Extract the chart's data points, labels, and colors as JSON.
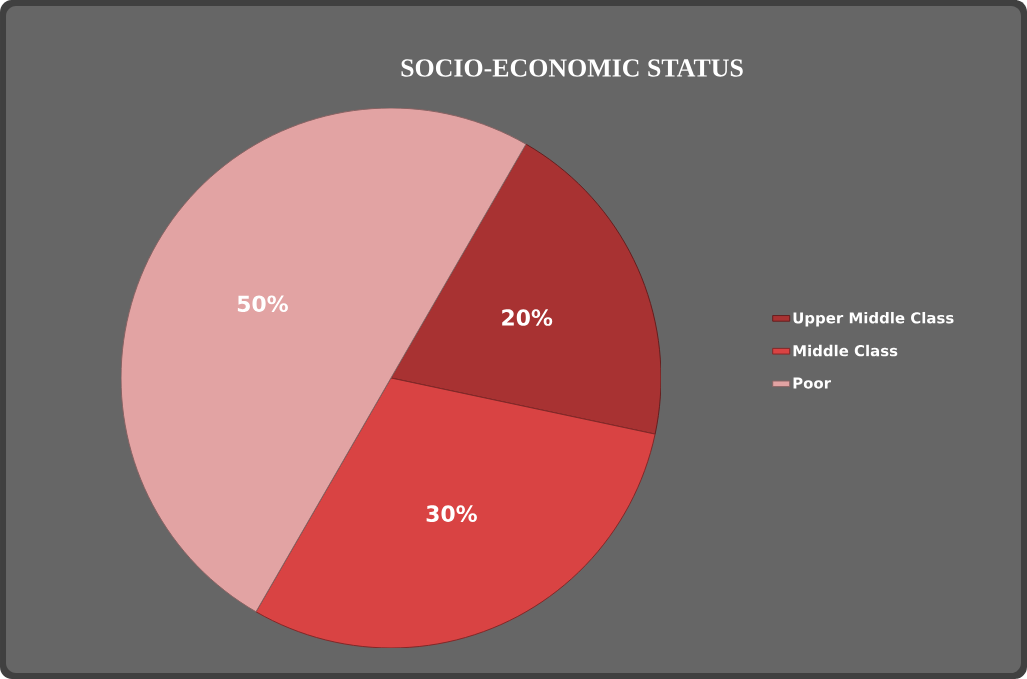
{
  "chart_data": {
    "type": "pie",
    "title": "SOCIO-ECONOMIC STATUS",
    "categories": [
      "Upper Middle Class",
      "Middle Class",
      "Poor"
    ],
    "values": [
      20,
      30,
      50
    ],
    "value_labels": [
      "20%",
      "30%",
      "50%"
    ],
    "colors": [
      "#a83232",
      "#d94343",
      "#e2a3a3"
    ],
    "legend": "right"
  }
}
